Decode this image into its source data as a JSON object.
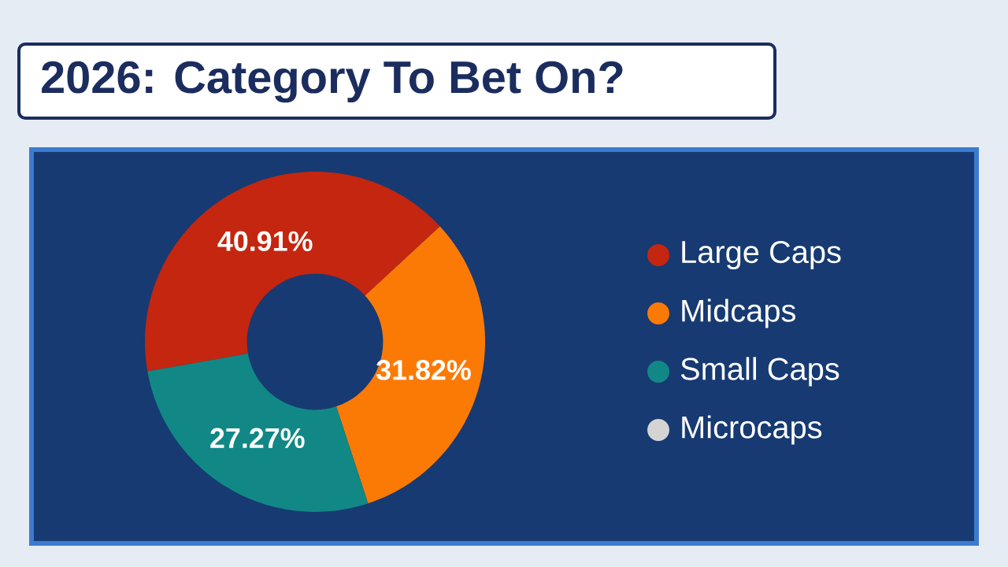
{
  "chart_data": {
    "type": "donut",
    "title": "2026: Category To Bet On?",
    "categories": [
      "Large Caps",
      "Midcaps",
      "Small Caps",
      "Microcaps"
    ],
    "values": [
      40.91,
      31.82,
      27.27,
      0
    ],
    "colors": [
      "#c4260f",
      "#fb7a06",
      "#118886",
      "#d4d4d4"
    ],
    "value_labels": [
      "40.91%",
      "31.82%",
      "27.27%",
      null
    ],
    "legend": "right"
  }
}
